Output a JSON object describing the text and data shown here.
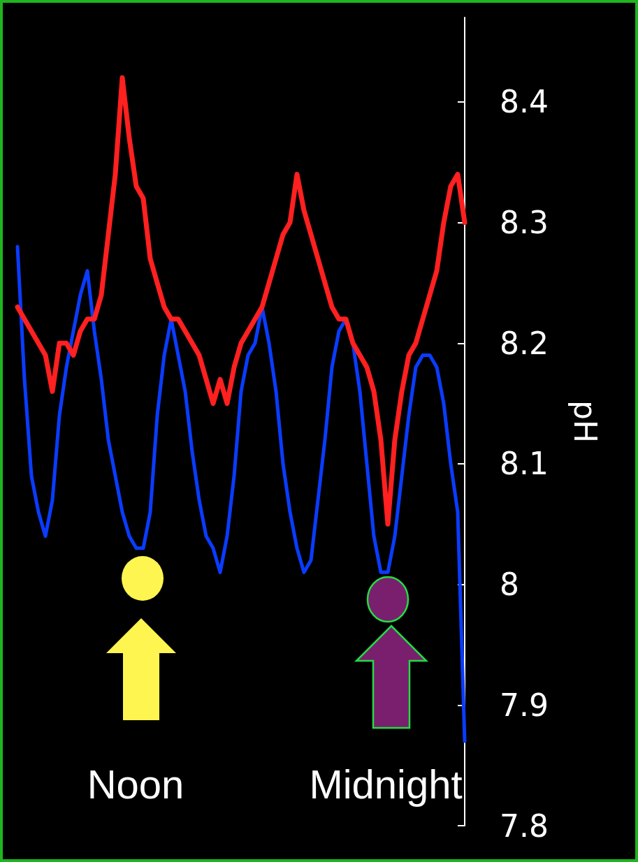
{
  "chart_data": {
    "type": "line",
    "ylabel": "pH",
    "categories": [
      null,
      null,
      null,
      null,
      null,
      null,
      null,
      null,
      null,
      null,
      null,
      null,
      null,
      null,
      null,
      null,
      null,
      null,
      null,
      null,
      null,
      null,
      null,
      null,
      null,
      null,
      null,
      null,
      null,
      null,
      null,
      null,
      null,
      null,
      null,
      null,
      null,
      null,
      null,
      null,
      null,
      null,
      null,
      null,
      null,
      null,
      null,
      null,
      null,
      null,
      null,
      null,
      null,
      null,
      null,
      null,
      null,
      null,
      null,
      null,
      null,
      null,
      null,
      null,
      null
    ],
    "series": [
      {
        "color": "#0a3cff",
        "values": [
          8.28,
          8.17,
          8.09,
          8.06,
          8.04,
          8.07,
          8.14,
          8.18,
          8.21,
          8.24,
          8.26,
          8.21,
          8.17,
          8.12,
          8.09,
          8.06,
          8.04,
          8.03,
          8.03,
          8.06,
          8.14,
          8.19,
          8.22,
          8.19,
          8.16,
          8.11,
          8.07,
          8.04,
          8.03,
          8.01,
          8.04,
          8.09,
          8.16,
          8.19,
          8.2,
          8.23,
          8.2,
          8.16,
          8.1,
          8.06,
          8.03,
          8.01,
          8.02,
          8.07,
          8.12,
          8.18,
          8.21,
          8.22,
          8.2,
          8.16,
          8.1,
          8.04,
          8.01,
          8.01,
          8.04,
          8.09,
          8.14,
          8.18,
          8.19,
          8.19,
          8.18,
          8.15,
          8.1,
          8.06,
          7.87
        ]
      },
      {
        "color": "#ff2020",
        "values": [
          8.23,
          8.22,
          8.21,
          8.2,
          8.19,
          8.16,
          8.2,
          8.2,
          8.19,
          8.21,
          8.22,
          8.22,
          8.24,
          8.29,
          8.34,
          8.42,
          8.37,
          8.33,
          8.32,
          8.27,
          8.25,
          8.23,
          8.22,
          8.22,
          8.21,
          8.2,
          8.19,
          8.17,
          8.15,
          8.17,
          8.15,
          8.18,
          8.2,
          8.21,
          8.22,
          8.23,
          8.25,
          8.27,
          8.29,
          8.3,
          8.34,
          8.31,
          8.29,
          8.27,
          8.25,
          8.23,
          8.22,
          8.22,
          8.2,
          8.19,
          8.18,
          8.16,
          8.12,
          8.05,
          8.12,
          8.16,
          8.19,
          8.2,
          8.22,
          8.24,
          8.26,
          8.3,
          8.33,
          8.34,
          8.3
        ]
      }
    ],
    "ylim": [
      7.8,
      8.47
    ],
    "yticks": [
      7.8,
      7.9,
      8,
      8.1,
      8.2,
      8.3,
      8.4
    ],
    "tick_labels": "y",
    "grid": false,
    "marker": "none",
    "line_style": "solid",
    "annotations": [
      "Noon",
      "Midnight"
    ]
  }
}
